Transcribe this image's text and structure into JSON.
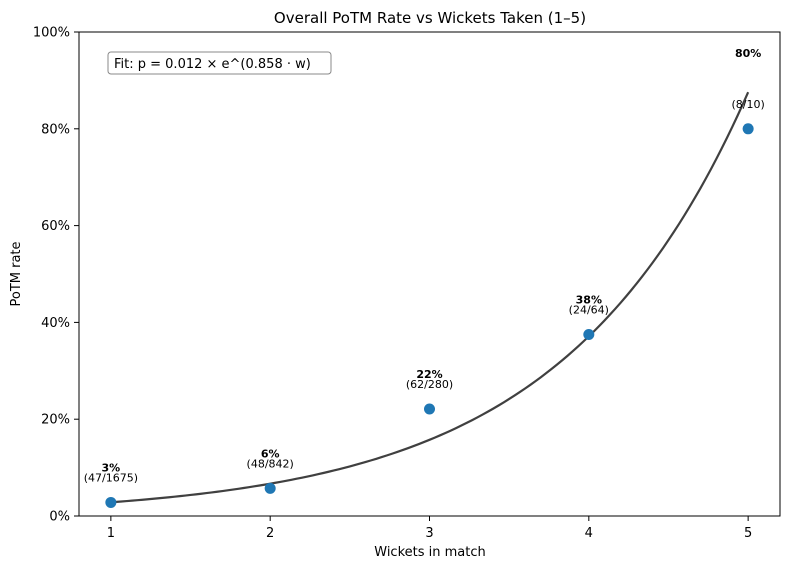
{
  "chart_data": {
    "type": "scatter",
    "title": "Overall PoTM Rate vs Wickets Taken (1–5)",
    "xlabel": "Wickets in match",
    "ylabel": "PoTM rate",
    "xlim": [
      0.8,
      5.2
    ],
    "ylim": [
      0,
      1
    ],
    "x_ticks": [
      "1",
      "2",
      "3",
      "4",
      "5"
    ],
    "y_ticks": [
      "0%",
      "20%",
      "40%",
      "60%",
      "80%",
      "100%"
    ],
    "grid": false,
    "point_color": "#1f77b4",
    "fit_color": "#404040",
    "points": [
      {
        "x": 1,
        "y": 0.028,
        "pct_label": "3%",
        "count_label": "(47/1675)"
      },
      {
        "x": 2,
        "y": 0.057,
        "pct_label": "6%",
        "count_label": "(48/842)"
      },
      {
        "x": 3,
        "y": 0.221,
        "pct_label": "22%",
        "count_label": "(62/280)"
      },
      {
        "x": 4,
        "y": 0.375,
        "pct_label": "38%",
        "count_label": "(24/64)"
      },
      {
        "x": 5,
        "y": 0.8,
        "pct_label": "80%",
        "count_label": "(8/10)"
      }
    ],
    "fit": {
      "a": 0.012,
      "b": 0.858,
      "x_range": [
        1,
        5
      ],
      "annotation": "Fit:  p = 0.012 × e^(0.858 · w)",
      "annotation_position": "top-left"
    }
  }
}
